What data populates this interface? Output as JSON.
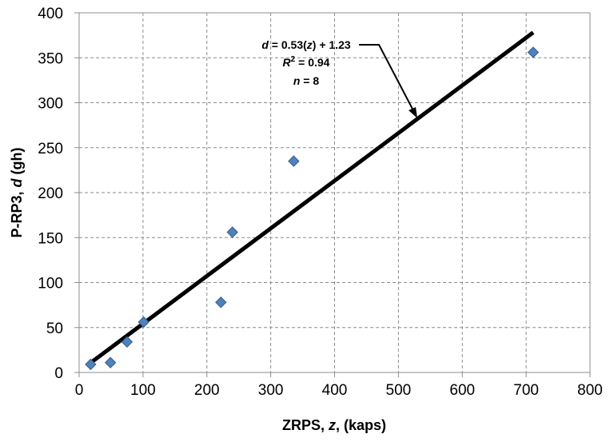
{
  "chart_data": {
    "type": "scatter",
    "x_ticks": [
      "0",
      "100",
      "200",
      "300",
      "400",
      "500",
      "600",
      "700",
      "800"
    ],
    "y_ticks": [
      "0",
      "50",
      "100",
      "150",
      "200",
      "250",
      "300",
      "350",
      "400"
    ],
    "xlim": [
      0,
      800
    ],
    "ylim": [
      0,
      400
    ],
    "grid": true,
    "points": [
      {
        "x": 18,
        "y": 9
      },
      {
        "x": 49,
        "y": 11
      },
      {
        "x": 75,
        "y": 34
      },
      {
        "x": 101,
        "y": 56
      },
      {
        "x": 222,
        "y": 78
      },
      {
        "x": 240,
        "y": 156
      },
      {
        "x": 336,
        "y": 235
      },
      {
        "x": 711,
        "y": 356
      }
    ],
    "trendline": {
      "slope": 0.53,
      "intercept": 1.23,
      "x_start": 18,
      "x_end": 711
    },
    "annotation": {
      "line1_var": "d",
      "line1_mid": " = 0.53(",
      "line1_var2": "z",
      "line1_end": ") + 1.23",
      "line2_var": "R",
      "line2_sup": "2",
      "line2_end": " = 0.94",
      "line3_var": "n",
      "line3_end": " = 8"
    },
    "xlabel": {
      "prefix": "ZRPS, ",
      "var": "z",
      "suffix": ", (kaps)"
    },
    "ylabel": {
      "prefix": "P-RP3, ",
      "var": "d",
      "suffix": " (gh)"
    },
    "colors": {
      "marker": "#4f81bd",
      "marker_edge": "#385d8a",
      "trendline": "#000000",
      "grid": "#8c8c8c"
    }
  }
}
